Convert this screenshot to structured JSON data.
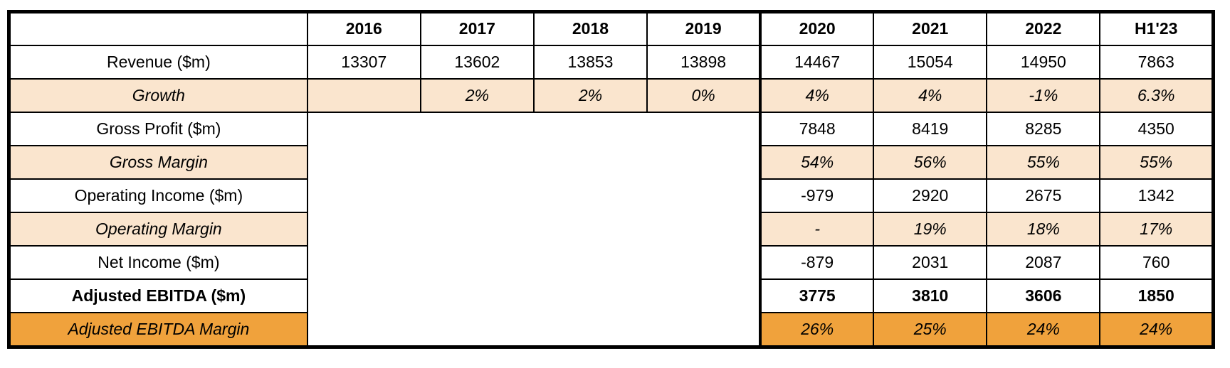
{
  "colors": {
    "band_light_peach": "#fae5ce",
    "band_accent_orange": "#f0a23c",
    "grid_border": "#000000",
    "text": "#000000",
    "background": "#ffffff"
  },
  "chart_data": {
    "type": "table",
    "title": "",
    "columns": [
      "",
      "2016",
      "2017",
      "2018",
      "2019",
      "2020",
      "2021",
      "2022",
      "H1'23"
    ],
    "rows": [
      {
        "key": "revenue",
        "label": "Revenue ($m)",
        "style": "plain",
        "values": [
          "13307",
          "13602",
          "13853",
          "13898",
          "14467",
          "15054",
          "14950",
          "7863"
        ]
      },
      {
        "key": "growth",
        "label": "Growth",
        "style": "peach",
        "values": [
          "",
          "2%",
          "2%",
          "0%",
          "4%",
          "4%",
          "-1%",
          "6.3%"
        ]
      },
      {
        "key": "gross-profit",
        "label": "Gross Profit ($m)",
        "style": "plain",
        "values": [
          "7848",
          "8419",
          "8285",
          "4350"
        ]
      },
      {
        "key": "gross-margin",
        "label": "Gross Margin",
        "style": "peach",
        "values": [
          "54%",
          "56%",
          "55%",
          "55%"
        ]
      },
      {
        "key": "operating-income",
        "label": "Operating Income ($m)",
        "style": "plain",
        "values": [
          "-979",
          "2920",
          "2675",
          "1342"
        ]
      },
      {
        "key": "operating-margin",
        "label": "Operating Margin",
        "style": "peach",
        "values": [
          "-",
          "19%",
          "18%",
          "17%"
        ]
      },
      {
        "key": "net-income",
        "label": "Net Income ($m)",
        "style": "plain",
        "values": [
          "-879",
          "2031",
          "2087",
          "760"
        ]
      },
      {
        "key": "adj-ebitda",
        "label": "Adjusted EBITDA ($m)",
        "style": "bold",
        "values": [
          "3775",
          "3810",
          "3606",
          "1850"
        ]
      },
      {
        "key": "adj-ebitda-margin",
        "label": "Adjusted EBITDA Margin",
        "style": "orange",
        "values": [
          "26%",
          "25%",
          "24%",
          "24%"
        ]
      }
    ],
    "notes": "Columns 2016-2019 are blank (merged empty region) for all rows below Growth."
  }
}
